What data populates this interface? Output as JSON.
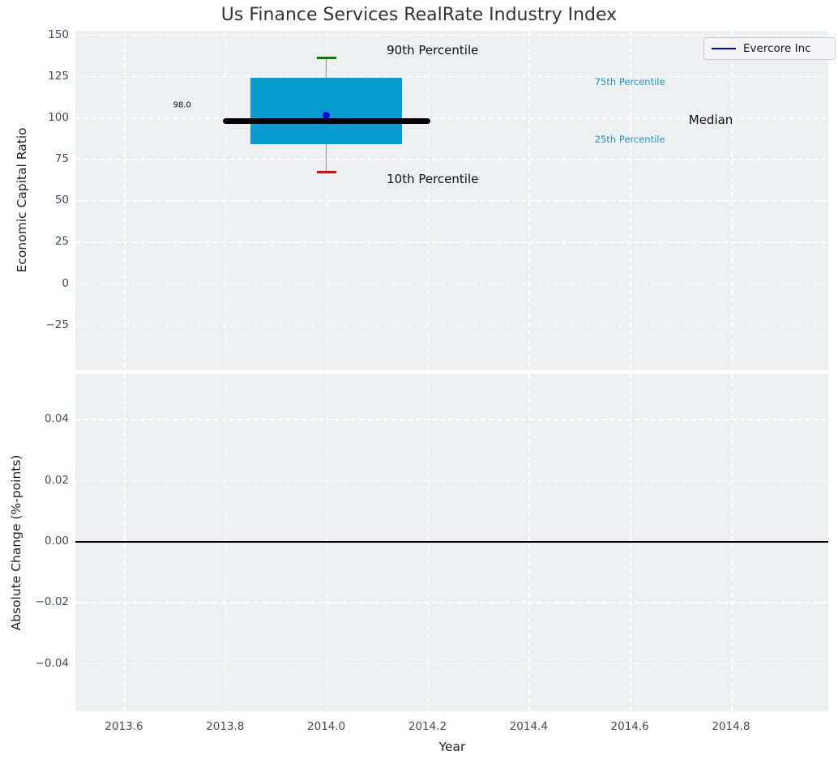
{
  "figure": {
    "title": "Us Finance Services RealRate Industry Index",
    "legend": {
      "label": "Evercore Inc",
      "line_color": "#0000e6"
    }
  },
  "colors": {
    "axes_background": "#edf0f1",
    "grid": "#ffffff",
    "box_fill": "#089dce",
    "median_line": "#000000",
    "p90_cap": "#008000",
    "p10_cap": "#ee0000",
    "company_point": "#0000dd",
    "tick_label": "#3d4b5f",
    "cyan_annotation": "#2196c8"
  },
  "chart_data": [
    {
      "type": "box",
      "title": "Us Finance Services RealRate Industry Index",
      "ylabel": "Economic Capital Ratio",
      "x_center": 2014.0,
      "box_halfwidth_years": 0.15,
      "median_halfwidth_years": 0.205,
      "percentiles": {
        "p90": 136,
        "p75": 124,
        "median": 98.0,
        "p25": 84,
        "p10": 67
      },
      "company_point": {
        "name": "Evercore Inc",
        "x": 2014.0,
        "value": 101
      },
      "yticks": [
        {
          "v": 150,
          "label": "150"
        },
        {
          "v": 125,
          "label": "125"
        },
        {
          "v": 100,
          "label": "100"
        },
        {
          "v": 75,
          "label": "75"
        },
        {
          "v": 50,
          "label": "50"
        },
        {
          "v": 25,
          "label": "25"
        },
        {
          "v": 0,
          "label": "0"
        },
        {
          "v": -25,
          "label": "−25"
        }
      ],
      "annotations": [
        {
          "text": "90th Percentile",
          "x": 2014.21,
          "y": 140.5,
          "style": "large"
        },
        {
          "text": "10th Percentile",
          "x": 2014.21,
          "y": 63.0,
          "style": "large"
        },
        {
          "text": "75th Percentile",
          "x": 2014.6,
          "y": 121.5,
          "style": "cyan"
        },
        {
          "text": "25th Percentile",
          "x": 2014.6,
          "y": 87.0,
          "style": "cyan"
        },
        {
          "text": "Median",
          "x": 2014.76,
          "y": 98.3,
          "style": "large"
        },
        {
          "text": "98.0",
          "x": 2013.715,
          "y": 107.5,
          "style": "small-black"
        }
      ],
      "legend_entries": [
        "Evercore Inc"
      ],
      "ylim": [
        -52,
        152
      ],
      "grid": true
    },
    {
      "type": "line",
      "ylabel": "Absolute Change (%-points)",
      "xlabel": "Year",
      "series": [],
      "zero_line": 0.0,
      "yticks": [
        {
          "v": 0.04,
          "label": "0.04"
        },
        {
          "v": 0.02,
          "label": "0.02"
        },
        {
          "v": 0.0,
          "label": "0.00"
        },
        {
          "v": -0.02,
          "label": "−0.02"
        },
        {
          "v": -0.04,
          "label": "−0.04"
        }
      ],
      "xticks": [
        {
          "v": 2013.6,
          "label": "2013.6"
        },
        {
          "v": 2013.8,
          "label": "2013.8"
        },
        {
          "v": 2014.0,
          "label": "2014.0"
        },
        {
          "v": 2014.2,
          "label": "2014.2"
        },
        {
          "v": 2014.4,
          "label": "2014.4"
        },
        {
          "v": 2014.6,
          "label": "2014.6"
        },
        {
          "v": 2014.8,
          "label": "2014.8"
        }
      ],
      "ylim": [
        -0.055,
        0.055
      ],
      "grid": true
    }
  ]
}
